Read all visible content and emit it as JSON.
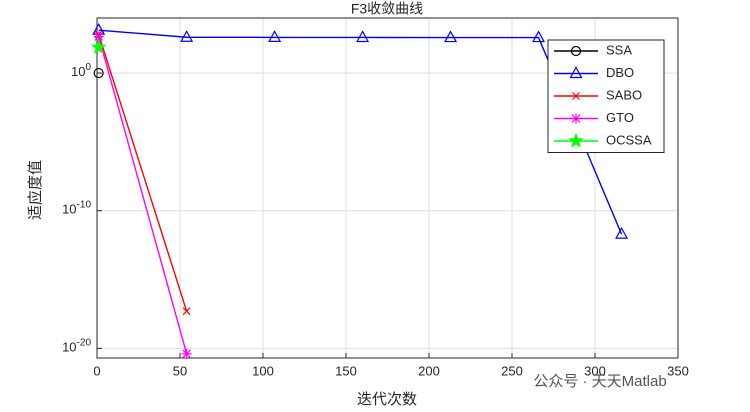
{
  "chart_data": {
    "type": "line",
    "title": "F3收敛曲线",
    "x_label": "迭代次数",
    "y_label": "适应度值",
    "log_y": true,
    "grid": true,
    "legend_position": "upper-right",
    "xlim": [
      0,
      350
    ],
    "xticks": [
      0,
      50,
      100,
      150,
      200,
      250,
      300,
      350
    ],
    "ylim": [
      2e-21,
      10000
    ],
    "yticks": [
      {
        "value": 1e-20,
        "label": "10^-20"
      },
      {
        "value": 1e-10,
        "label": "10^-10"
      },
      {
        "value": 1,
        "label": "10^0"
      }
    ],
    "series": [
      {
        "name": "SSA",
        "color": "#000000",
        "marker": "circle",
        "x": [
          1
        ],
        "values": [
          1
        ]
      },
      {
        "name": "DBO",
        "color": "#0000ff",
        "marker": "triangle",
        "x": [
          1,
          54,
          107,
          160,
          213,
          266,
          316
        ],
        "values": [
          1300,
          400,
          390,
          385,
          380,
          378,
          2e-12
        ]
      },
      {
        "name": "SABO",
        "color": "#ff0000",
        "marker": "x",
        "x": [
          1,
          54
        ],
        "values": [
          650,
          5e-18
        ]
      },
      {
        "name": "GTO",
        "color": "#ff00ff",
        "marker": "star",
        "x": [
          1,
          54
        ],
        "values": [
          450,
          4e-21
        ]
      },
      {
        "name": "OCSSA",
        "color": "#00ff00",
        "marker": "pentagram",
        "x": [
          1
        ],
        "values": [
          75
        ]
      }
    ],
    "watermark": "公众号 · 天天Matlab"
  }
}
